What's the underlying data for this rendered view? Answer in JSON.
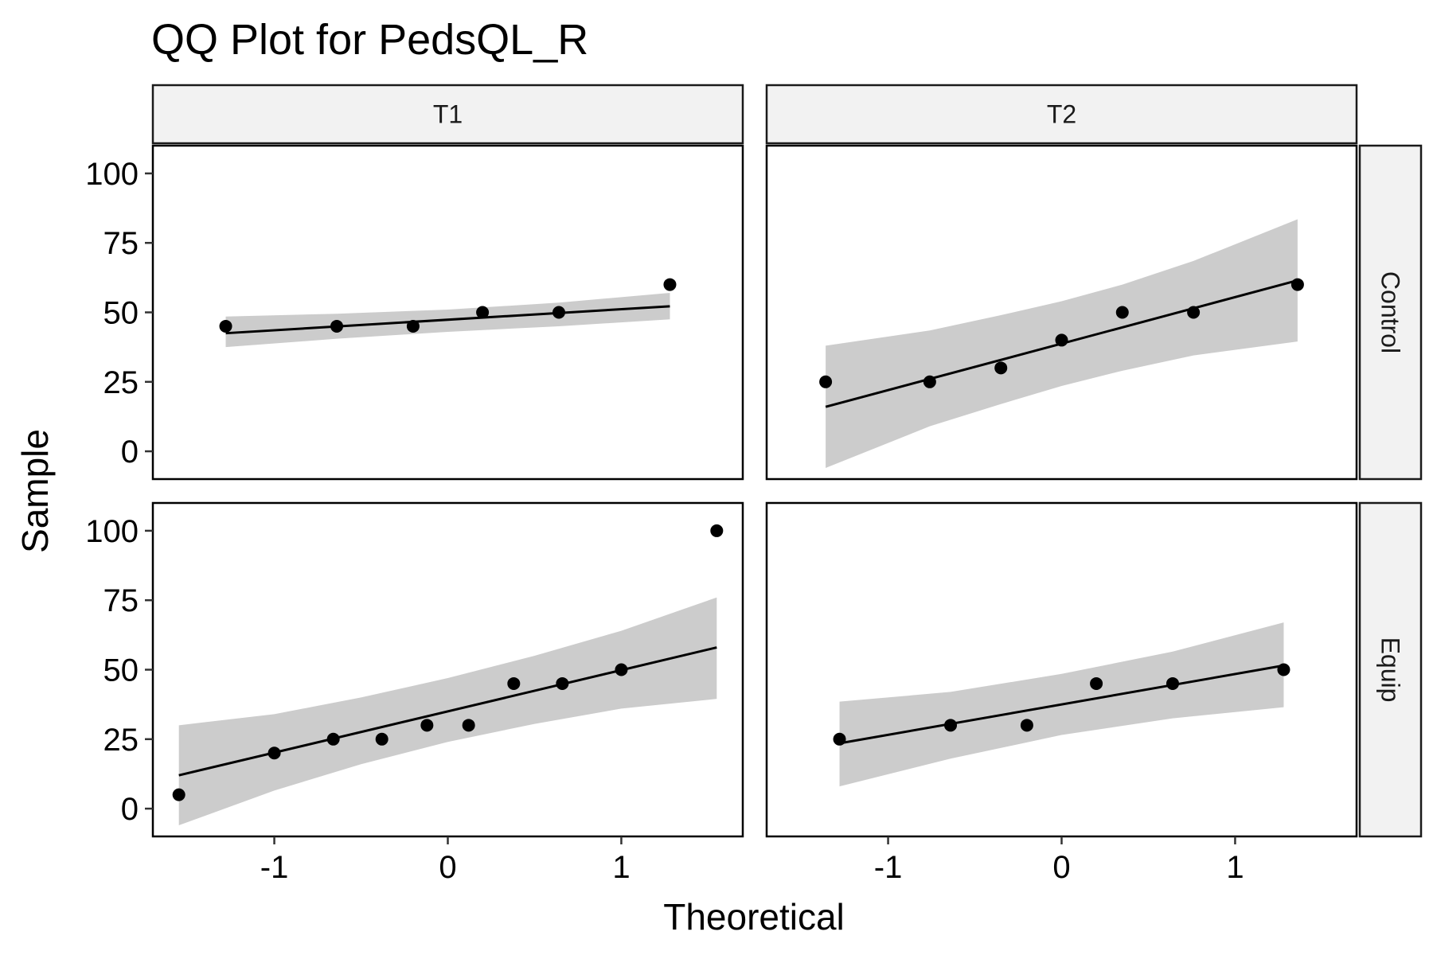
{
  "chart_data": {
    "type": "scatter",
    "title": "QQ Plot for PedsQL_R",
    "xlabel": "Theoretical",
    "ylabel": "Sample",
    "xlim": [
      -1.7,
      1.7
    ],
    "ylim": [
      -10,
      110
    ],
    "x_ticks": [
      -1,
      0,
      1
    ],
    "y_ticks": [
      0,
      25,
      50,
      75,
      100
    ],
    "x_tick_labels": [
      "-1",
      "0",
      "1"
    ],
    "y_tick_labels": [
      "0",
      "25",
      "50",
      "75",
      "100"
    ],
    "column_strips": [
      "T1",
      "T2"
    ],
    "row_strips": [
      "Control",
      "Equip"
    ],
    "grid": false,
    "colors": {
      "point": "#000000",
      "line": "#000000",
      "band": "#cccccc",
      "strip_fill": "#f2f2f2",
      "panel_border": "#000000"
    },
    "panels": [
      {
        "column": "T1",
        "row": "Control",
        "points": [
          [
            -1.28,
            45
          ],
          [
            -0.64,
            45
          ],
          [
            -0.2,
            45
          ],
          [
            0.2,
            50
          ],
          [
            0.64,
            50
          ],
          [
            1.28,
            60
          ]
        ],
        "line": [
          [
            -1.28,
            42.5
          ],
          [
            1.28,
            52.2
          ]
        ],
        "band": {
          "x": [
            -1.28,
            -0.64,
            0,
            0.64,
            1.28
          ],
          "upper": [
            48.5,
            49.5,
            51,
            53.5,
            57
          ],
          "lower": [
            37.5,
            40.5,
            43,
            45,
            47.5
          ]
        }
      },
      {
        "column": "T2",
        "row": "Control",
        "points": [
          [
            -1.36,
            25
          ],
          [
            -0.76,
            25
          ],
          [
            -0.35,
            30
          ],
          [
            0,
            40
          ],
          [
            0.35,
            50
          ],
          [
            0.76,
            50
          ],
          [
            1.36,
            60
          ]
        ],
        "line": [
          [
            -1.36,
            16
          ],
          [
            1.36,
            61.5
          ]
        ],
        "band": {
          "x": [
            -1.36,
            -0.76,
            -0.35,
            0,
            0.35,
            0.76,
            1.36
          ],
          "upper": [
            38,
            43.5,
            49,
            54,
            60,
            68.5,
            83.5
          ],
          "lower": [
            -6,
            9,
            17,
            23.5,
            29,
            34.5,
            39.5
          ]
        }
      },
      {
        "column": "T1",
        "row": "Equip",
        "points": [
          [
            -1.55,
            5
          ],
          [
            -1.0,
            20
          ],
          [
            -0.66,
            25
          ],
          [
            -0.38,
            25
          ],
          [
            -0.12,
            30
          ],
          [
            0.12,
            30
          ],
          [
            0.38,
            45
          ],
          [
            0.66,
            45
          ],
          [
            1.0,
            50
          ],
          [
            1.55,
            100
          ]
        ],
        "line": [
          [
            -1.55,
            12
          ],
          [
            1.55,
            58
          ]
        ],
        "band": {
          "x": [
            -1.55,
            -1.0,
            -0.5,
            0,
            0.5,
            1.0,
            1.55
          ],
          "upper": [
            30,
            34,
            40,
            47,
            55,
            64,
            76
          ],
          "lower": [
            -6,
            6.5,
            16,
            24,
            30.5,
            36,
            39.5
          ]
        }
      },
      {
        "column": "T2",
        "row": "Equip",
        "points": [
          [
            -1.28,
            25
          ],
          [
            -0.64,
            30
          ],
          [
            -0.2,
            30
          ],
          [
            0.2,
            45
          ],
          [
            0.64,
            45
          ],
          [
            1.28,
            50
          ]
        ],
        "line": [
          [
            -1.28,
            23.5
          ],
          [
            1.28,
            51.5
          ]
        ],
        "band": {
          "x": [
            -1.28,
            -0.64,
            0,
            0.64,
            1.28
          ],
          "upper": [
            38.5,
            42,
            48.5,
            56.5,
            67
          ],
          "lower": [
            8,
            18,
            26.5,
            32.5,
            36.5
          ]
        }
      }
    ]
  }
}
